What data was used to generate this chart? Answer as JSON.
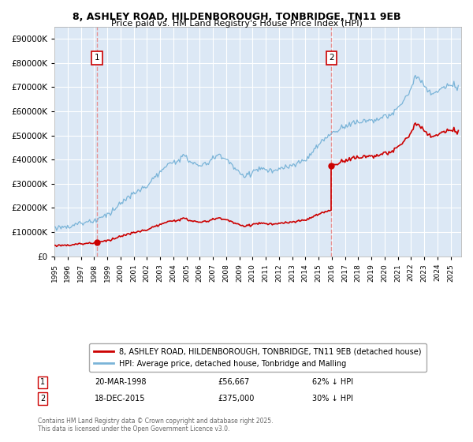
{
  "title": "8, ASHLEY ROAD, HILDENBOROUGH, TONBRIDGE, TN11 9EB",
  "subtitle": "Price paid vs. HM Land Registry's House Price Index (HPI)",
  "legend_line1": "8, ASHLEY ROAD, HILDENBOROUGH, TONBRIDGE, TN11 9EB (detached house)",
  "legend_line2": "HPI: Average price, detached house, Tonbridge and Malling",
  "footer1": "Contains HM Land Registry data © Crown copyright and database right 2025.",
  "footer2": "This data is licensed under the Open Government Licence v3.0.",
  "annotation1_label": "1",
  "annotation1_date": "20-MAR-1998",
  "annotation1_price": "£56,667",
  "annotation1_hpi": "62% ↓ HPI",
  "annotation2_label": "2",
  "annotation2_date": "18-DEC-2015",
  "annotation2_price": "£375,000",
  "annotation2_hpi": "30% ↓ HPI",
  "sale1_year": 1998.22,
  "sale1_price": 56667,
  "sale2_year": 2015.97,
  "sale2_price": 375000,
  "hpi_color": "#7ab4d8",
  "sale_color": "#cc0000",
  "dashed_color": "#e88888",
  "background_color": "#dce8f5",
  "grid_color": "#ffffff",
  "ylim": [
    0,
    950000
  ],
  "xlim_start": 1995.0,
  "xlim_end": 2025.8,
  "yticks": [
    0,
    100000,
    200000,
    300000,
    400000,
    500000,
    600000,
    700000,
    800000,
    900000
  ]
}
